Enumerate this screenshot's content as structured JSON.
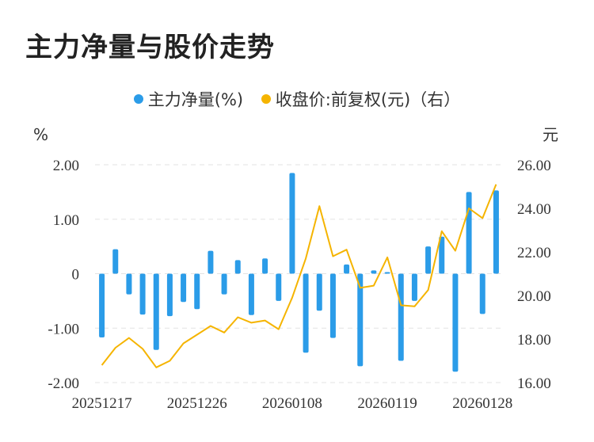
{
  "title": "主力净量与股价走势",
  "legend": {
    "left_label": "主力净量(%)",
    "right_label": "收盘价:前复权(元)（右）"
  },
  "colors": {
    "bar": "#2b9ce8",
    "line": "#f5b400",
    "grid": "#e3e3e3"
  },
  "chart_data": {
    "type": "bar",
    "left_unit": "%",
    "right_unit": "元",
    "left_ylim": [
      -2,
      2
    ],
    "right_ylim": [
      16,
      26
    ],
    "left_ticks": [
      "2.00",
      "1.00",
      "0",
      "-1.00",
      "-2.00"
    ],
    "right_ticks": [
      "26.00",
      "24.00",
      "22.00",
      "20.00",
      "18.00",
      "16.00"
    ],
    "x_tick_labels": [
      {
        "index": 0,
        "label": "20251217"
      },
      {
        "index": 7,
        "label": "20251226"
      },
      {
        "index": 14,
        "label": "20260108"
      },
      {
        "index": 21,
        "label": "20260119"
      },
      {
        "index": 28,
        "label": "20260128"
      }
    ],
    "series": [
      {
        "name": "主力净量(%)",
        "type": "bar",
        "axis": "left",
        "values": [
          -1.17,
          0.45,
          -0.38,
          -0.75,
          -1.4,
          -0.78,
          -0.52,
          -0.65,
          0.42,
          -0.38,
          0.25,
          -0.76,
          0.28,
          -0.5,
          1.85,
          -1.45,
          -0.68,
          -1.18,
          0.17,
          -1.7,
          0.06,
          0.03,
          -1.6,
          -0.5,
          0.5,
          0.68,
          -1.8,
          1.5,
          -0.74,
          1.53
        ]
      },
      {
        "name": "收盘价:前复权(元)（右）",
        "type": "line",
        "axis": "right",
        "values": [
          16.8,
          17.6,
          18.05,
          17.55,
          16.7,
          17.0,
          17.8,
          18.2,
          18.6,
          18.3,
          19.0,
          18.75,
          18.85,
          18.45,
          19.9,
          21.7,
          24.1,
          21.8,
          22.1,
          20.35,
          20.45,
          21.75,
          19.55,
          19.5,
          20.25,
          22.95,
          22.05,
          24.0,
          23.55,
          25.1
        ]
      }
    ]
  }
}
